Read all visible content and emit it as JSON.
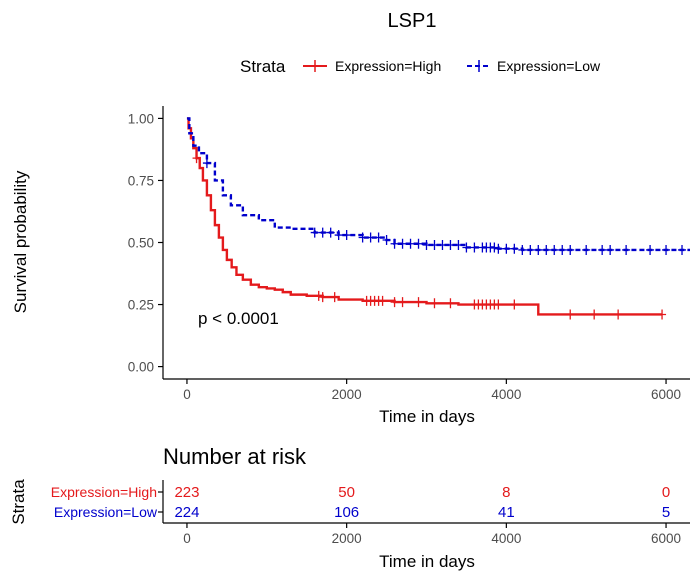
{
  "chart_data": {
    "type": "line",
    "title": "LSP1",
    "legend": {
      "title": "Strata",
      "position": "top",
      "entries": [
        {
          "label": "Expression=High",
          "color": "#e41a1c",
          "style": "solid"
        },
        {
          "label": "Expression=Low",
          "color": "#0000cc",
          "style": "dashed"
        }
      ]
    },
    "xlabel": "Time in days",
    "ylabel": "Survival probability",
    "xlim": [
      -300,
      6300
    ],
    "ylim": [
      -0.05,
      1.05
    ],
    "x_ticks": [
      0,
      2000,
      4000,
      6000
    ],
    "y_ticks": [
      0.0,
      0.25,
      0.5,
      0.75,
      1.0
    ],
    "y_tick_labels": [
      "0.00",
      "0.25",
      "0.50",
      "0.75",
      "1.00"
    ],
    "annotation": "p < 0.0001",
    "series": [
      {
        "name": "Expression=High",
        "color": "#e41a1c",
        "dash": "solid",
        "x": [
          0,
          20,
          50,
          80,
          120,
          160,
          200,
          250,
          300,
          350,
          400,
          450,
          500,
          560,
          620,
          700,
          800,
          900,
          1000,
          1100,
          1200,
          1300,
          1500,
          1700,
          1900,
          2200,
          2600,
          3000,
          3400,
          3800,
          4200,
          4400,
          4800,
          5200,
          5600,
          5950
        ],
        "y": [
          1.0,
          0.96,
          0.92,
          0.88,
          0.84,
          0.8,
          0.75,
          0.69,
          0.63,
          0.57,
          0.52,
          0.47,
          0.43,
          0.4,
          0.37,
          0.35,
          0.33,
          0.32,
          0.315,
          0.31,
          0.3,
          0.29,
          0.285,
          0.28,
          0.27,
          0.265,
          0.26,
          0.255,
          0.25,
          0.25,
          0.25,
          0.21,
          0.21,
          0.21,
          0.21,
          0.21
        ],
        "censor_x": [
          120,
          1650,
          1700,
          1850,
          2250,
          2300,
          2350,
          2400,
          2450,
          2600,
          2700,
          2900,
          3100,
          3300,
          3600,
          3650,
          3700,
          3750,
          3800,
          3850,
          3900,
          4100,
          4800,
          5100,
          5400,
          5950
        ]
      },
      {
        "name": "Expression=Low",
        "color": "#0000cc",
        "dash": "dashed",
        "x": [
          0,
          30,
          80,
          150,
          250,
          350,
          450,
          550,
          700,
          900,
          1100,
          1300,
          1600,
          1900,
          2200,
          2500,
          2600,
          3000,
          3500,
          3900,
          4200,
          4500,
          5000,
          5500,
          6300
        ],
        "y": [
          1.0,
          0.94,
          0.89,
          0.86,
          0.82,
          0.75,
          0.69,
          0.65,
          0.61,
          0.59,
          0.56,
          0.555,
          0.54,
          0.53,
          0.52,
          0.51,
          0.495,
          0.49,
          0.48,
          0.475,
          0.47,
          0.47,
          0.47,
          0.47,
          0.47
        ],
        "censor_x": [
          250,
          1600,
          1700,
          1800,
          1900,
          2000,
          2200,
          2300,
          2400,
          2500,
          2600,
          2700,
          2800,
          2900,
          3000,
          3100,
          3200,
          3300,
          3400,
          3500,
          3600,
          3700,
          3750,
          3800,
          3850,
          3900,
          4000,
          4100,
          4200,
          4300,
          4400,
          4500,
          4600,
          4700,
          4800,
          5000,
          5200,
          5300,
          5500,
          5800,
          6000,
          6200
        ]
      }
    ],
    "risk_table": {
      "title": "Number at risk",
      "ylabel": "Strata",
      "xlabel": "Time in days",
      "time_points": [
        0,
        2000,
        4000,
        6000
      ],
      "rows": [
        {
          "label": "Expression=High",
          "color": "#e41a1c",
          "values": [
            "223",
            "50",
            "8",
            "0"
          ]
        },
        {
          "label": "Expression=Low",
          "color": "#0000cc",
          "values": [
            "224",
            "106",
            "41",
            "5"
          ]
        }
      ]
    }
  }
}
